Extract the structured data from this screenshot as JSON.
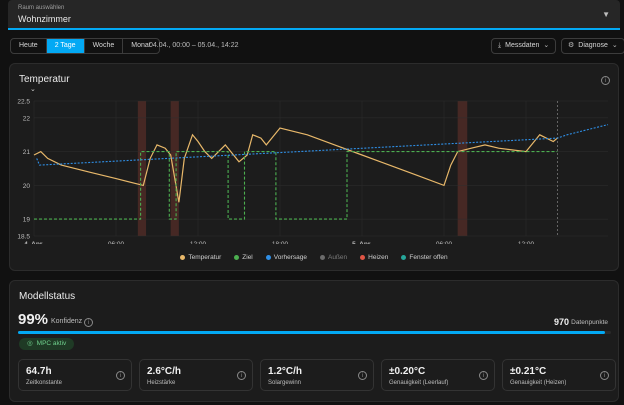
{
  "room": {
    "label": "Raum auswählen",
    "value": "Wohnzimmer"
  },
  "toolbar": {
    "ranges": [
      "Heute",
      "2 Tage",
      "Woche",
      "Monat"
    ],
    "active_range": "2 Tage",
    "range_text": "04.04., 00:00 – 05.04., 14:22",
    "messdaten_label": "Messdaten",
    "diagnose_label": "Diagnose"
  },
  "temperature_card": {
    "title": "Temperatur",
    "legend": [
      "Temperatur",
      "Ziel",
      "Vorhersage",
      "Außen",
      "Heizen",
      "Fenster offen"
    ]
  },
  "colors": {
    "temperatur": "#e8b86a",
    "ziel": "#4caf50",
    "vorhersage": "#2f8fe6",
    "aussen": "#6b6b6b",
    "heizen": "#e05545",
    "fenster": "#26a69a",
    "accent": "#03a9f4"
  },
  "chart_data": {
    "type": "line",
    "x_axis": {
      "range": [
        "04.04. 00:00",
        "05.04. 14:22"
      ],
      "tick_labels": [
        "4. Apr.",
        "06:00",
        "12:00",
        "18:00",
        "5. Apr.",
        "06:00",
        "12:00"
      ]
    },
    "y_axis": {
      "range": [
        18.5,
        22.5
      ],
      "tick_labels": [
        "18.5",
        "19",
        "20",
        "21",
        "22",
        "22.5"
      ]
    },
    "legend_placement": "bottom",
    "series": [
      {
        "name": "Temperatur",
        "x_hours": [
          0,
          0.5,
          1,
          2,
          4,
          6,
          8,
          8.5,
          9,
          9.6,
          10,
          10.6,
          11,
          11.6,
          12,
          12.5,
          13,
          14,
          15,
          15.6,
          16,
          16.6,
          17,
          18,
          19,
          20,
          22,
          24,
          26,
          28,
          30,
          30.5,
          31,
          32,
          33,
          34,
          36,
          37,
          38,
          38.3
        ],
        "y": [
          20.9,
          21.0,
          20.8,
          20.6,
          20.4,
          20.2,
          20.0,
          20.8,
          21.2,
          21.1,
          20.9,
          19.5,
          20.8,
          21.5,
          21.3,
          21.0,
          20.8,
          21.2,
          20.7,
          20.9,
          21.5,
          21.4,
          21.2,
          21.7,
          21.6,
          21.5,
          21.2,
          20.9,
          20.6,
          20.3,
          20.0,
          20.6,
          21.0,
          21.1,
          21.2,
          21.1,
          21.0,
          21.5,
          21.3,
          21.4
        ]
      },
      {
        "name": "Ziel",
        "x_hours": [
          0,
          7.8,
          7.8,
          9.9,
          9.9,
          10.4,
          10.4,
          14.2,
          14.2,
          15.4,
          15.4,
          17.7,
          17.7,
          22.9,
          22.9,
          31.4,
          31.4,
          38.3
        ],
        "y": [
          19,
          19,
          21,
          21,
          19,
          19,
          21,
          21,
          19,
          19,
          21,
          21,
          19,
          19,
          21,
          21,
          21,
          21
        ]
      },
      {
        "name": "Vorhersage",
        "x_hours": [
          0.2,
          0.4,
          38.3,
          39,
          40,
          41,
          42
        ],
        "y": [
          20.8,
          20.6,
          21.4,
          21.5,
          21.6,
          21.7,
          21.8
        ]
      }
    ],
    "heizen_hours": [
      [
        7.6,
        8.2
      ],
      [
        10.0,
        10.6
      ],
      [
        31.0,
        31.7
      ]
    ]
  },
  "model_status": {
    "title": "Modellstatus",
    "confidence": "99%",
    "confidence_label": "Konfidenz",
    "confidence_fraction": 0.99,
    "points": "970",
    "points_label": "Datenpunkte",
    "mpc_label": "MPC aktiv",
    "tiles": [
      {
        "value": "64.7h",
        "label": "Zeitkonstante"
      },
      {
        "value": "2.6°C/h",
        "label": "Heizstärke"
      },
      {
        "value": "1.2°C/h",
        "label": "Solargewinn"
      },
      {
        "value": "±0.20°C",
        "label": "Genauigkeit (Leerlauf)"
      },
      {
        "value": "±0.21°C",
        "label": "Genauigkeit (Heizen)"
      }
    ]
  }
}
